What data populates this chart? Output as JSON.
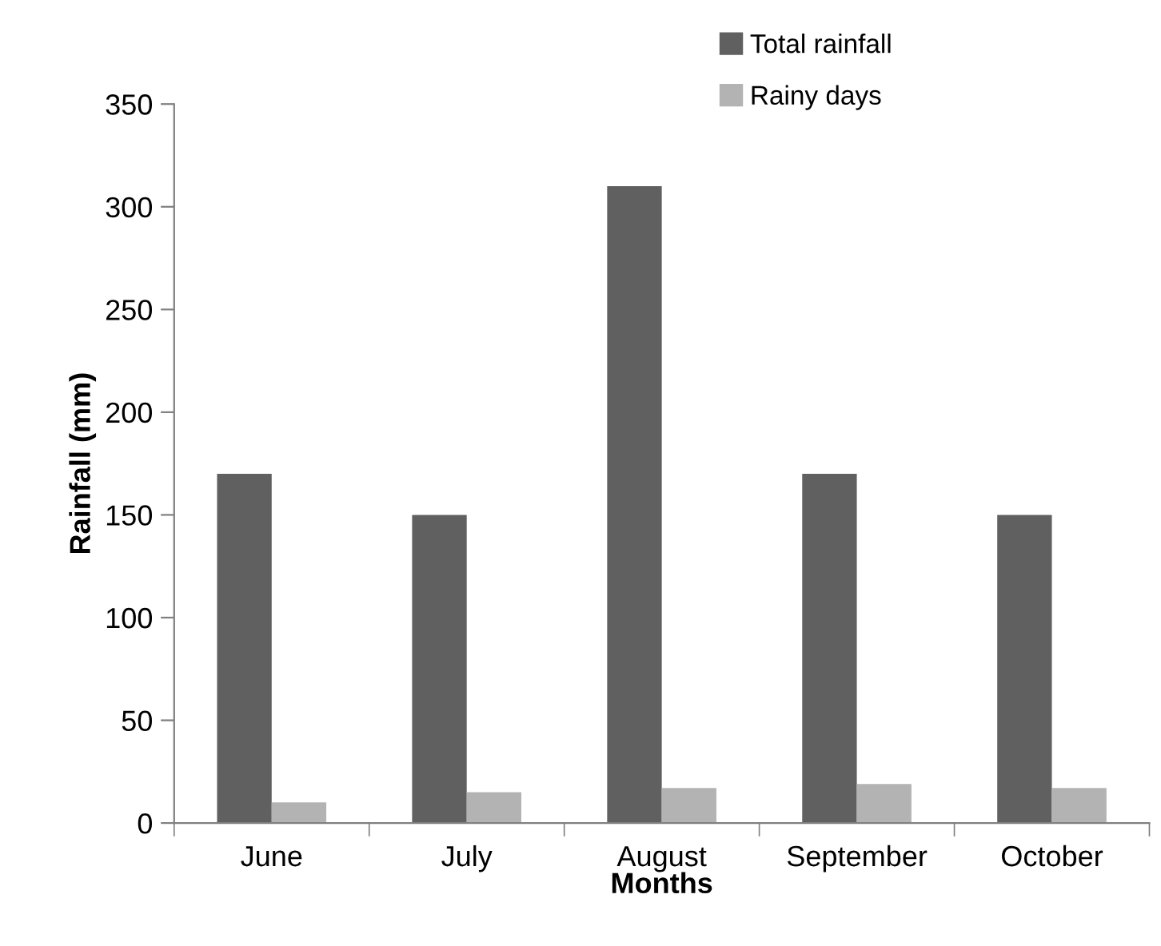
{
  "chart_data": {
    "type": "bar",
    "xlabel": "Months",
    "ylabel": "Rainfall (mm)",
    "categories": [
      "June",
      "July",
      "August",
      "September",
      "October"
    ],
    "series": [
      {
        "name": "Total rainfall",
        "color": "#606060",
        "values": [
          170,
          150,
          310,
          170,
          150
        ]
      },
      {
        "name": "Rainy days",
        "color": "#b3b3b3",
        "values": [
          10,
          15,
          17,
          19,
          17
        ]
      }
    ],
    "ylim": [
      0,
      350
    ],
    "yticks": [
      0,
      50,
      100,
      150,
      200,
      250,
      300,
      350
    ],
    "grid": false,
    "legend": "top"
  }
}
